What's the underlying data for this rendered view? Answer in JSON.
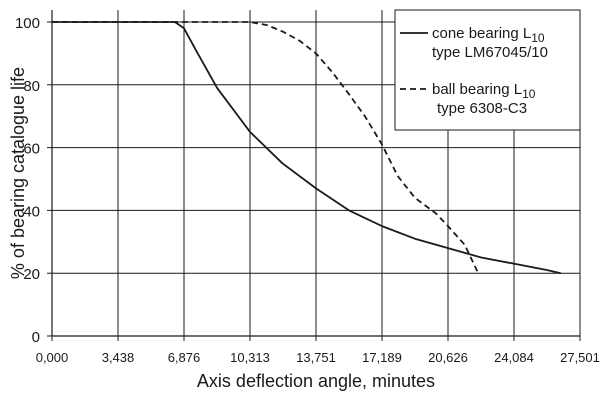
{
  "chart_data": {
    "type": "line",
    "title": "",
    "xlabel": "Axis deflection angle, minutes",
    "ylabel": "% of bearing catalogue life",
    "x_ticks": [
      "0,000",
      "3,438",
      "6,876",
      "10,313",
      "13,751",
      "17,189",
      "20,626",
      "24,084",
      "27,501"
    ],
    "y_ticks": [
      "0",
      "20",
      "40",
      "60",
      "80",
      "100"
    ],
    "xlim": [
      0,
      27.501
    ],
    "ylim": [
      0,
      100
    ],
    "grid": true,
    "legend_position": "top-right",
    "series": [
      {
        "name_line1": "cone bearing L",
        "name_sub": "10",
        "name_line2": "type LM67045/10",
        "style": "solid",
        "x": [
          0,
          6.4,
          6.876,
          7.5,
          8.6,
          10.313,
          12.0,
          13.751,
          15.47,
          17.189,
          18.9,
          20.626,
          22.355,
          24.084,
          25.8,
          26.5
        ],
        "y": [
          100,
          100,
          98,
          91,
          79,
          65,
          55,
          47,
          40,
          35,
          31,
          28,
          25,
          23,
          21,
          20
        ]
      },
      {
        "name_line1": "ball bearing L",
        "name_sub": "10",
        "name_line2": "type 6308-C3",
        "style": "dashed",
        "x": [
          0,
          10.313,
          11.2,
          12.0,
          12.9,
          13.751,
          14.6,
          15.47,
          16.3,
          17.189,
          18.0,
          18.9,
          20.0,
          20.626,
          21.5,
          22.2
        ],
        "y": [
          100,
          100,
          99,
          97,
          94,
          90,
          84,
          77,
          70,
          61,
          51,
          44,
          39,
          35,
          29,
          20
        ]
      }
    ],
    "colors": {
      "line": "#1a1a1a",
      "grid": "#1a1a1a",
      "background": "#ffffff"
    }
  }
}
